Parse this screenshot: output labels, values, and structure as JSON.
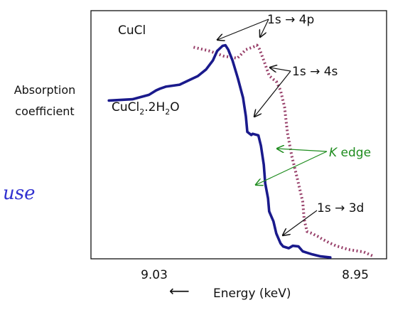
{
  "chart_data": {
    "type": "line",
    "xlabel": "Energy (keV)",
    "ylabel_lines": [
      "Absorption",
      "coefficient"
    ],
    "x_tick_labels": [
      "9.03",
      "8.95"
    ],
    "x_ticks": [
      9.03,
      8.95
    ],
    "xlim": [
      9.046,
      8.942
    ],
    "ylim": [
      0,
      1
    ],
    "grid": false,
    "y_ticks": "none",
    "series": [
      {
        "name": "CuCl",
        "color": "#98406a",
        "style": "dotted",
        "x": [
          9.0099,
          9.0043,
          8.9994,
          8.9945,
          8.9915,
          8.9886,
          8.9876,
          8.9867,
          8.9852,
          8.9833,
          8.9818,
          8.9808,
          8.9793,
          8.9779,
          8.9769,
          8.9754,
          8.9735,
          8.9715,
          8.971,
          8.97,
          8.9681,
          8.9671,
          8.9661,
          8.9647,
          8.9622,
          8.9598,
          8.9554,
          8.95,
          8.947
        ],
        "y": [
          0.96,
          0.943,
          0.92,
          0.91,
          0.949,
          0.963,
          0.969,
          0.951,
          0.9,
          0.831,
          0.814,
          0.805,
          0.764,
          0.689,
          0.574,
          0.469,
          0.369,
          0.259,
          0.18,
          0.124,
          0.115,
          0.107,
          0.101,
          0.09,
          0.073,
          0.059,
          0.042,
          0.031,
          0.014
        ]
      },
      {
        "name": "CuCl2.2H2O",
        "color": "#1a1a8c",
        "style": "solid",
        "x": [
          9.0397,
          9.0314,
          9.0256,
          9.0231,
          9.0217,
          9.0197,
          9.0148,
          9.0114,
          9.0084,
          9.0055,
          9.0031,
          9.0016,
          8.9997,
          8.9987,
          8.9977,
          8.9962,
          8.9943,
          8.9925,
          8.9915,
          8.991,
          8.9896,
          8.9891,
          8.9871,
          8.9862,
          8.9852,
          8.9847,
          8.9837,
          8.9833,
          8.9818,
          8.9808,
          8.9793,
          8.9784,
          8.9764,
          8.975,
          8.973,
          8.9715,
          8.9701,
          8.9681,
          8.9652,
          8.9618
        ],
        "y": [
          0.718,
          0.724,
          0.744,
          0.764,
          0.772,
          0.781,
          0.79,
          0.811,
          0.829,
          0.859,
          0.9,
          0.943,
          0.966,
          0.969,
          0.949,
          0.9,
          0.818,
          0.731,
          0.646,
          0.576,
          0.562,
          0.567,
          0.56,
          0.513,
          0.427,
          0.343,
          0.274,
          0.215,
          0.17,
          0.115,
          0.07,
          0.056,
          0.048,
          0.059,
          0.056,
          0.034,
          0.028,
          0.02,
          0.011,
          0.006
        ]
      }
    ],
    "legend": {
      "cucl_label": "CuCl",
      "cucl2_parts": [
        "CuCl",
        "2",
        ".2H",
        "2",
        "O"
      ]
    },
    "annotations": [
      {
        "prefix": "1s ",
        "arrow": "→",
        "suffix": " 4p",
        "color": "#111111"
      },
      {
        "prefix": "1s ",
        "arrow": "→",
        "suffix": " 4s",
        "color": "#111111"
      },
      {
        "prefix": "K",
        "arrow": "",
        "suffix": " edge",
        "color": "#1e8c1e",
        "italic_prefix": true
      },
      {
        "prefix": "1s ",
        "arrow": "→",
        "suffix": " 3d",
        "color": "#111111"
      }
    ],
    "axis_arrow": "⟵",
    "margin_note": "use"
  }
}
